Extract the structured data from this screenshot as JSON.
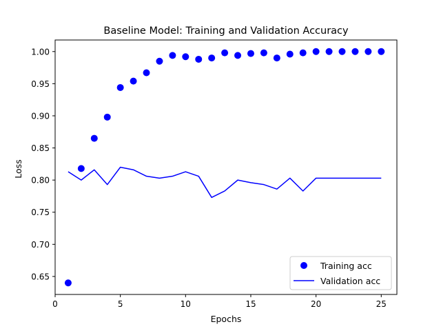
{
  "chart_data": {
    "type": "line",
    "title": "Baseline Model: Training and Validation Accuracy",
    "xlabel": "Epochs",
    "ylabel": "Loss",
    "xlim": [
      0,
      26.2
    ],
    "ylim": [
      0.622,
      1.018
    ],
    "xticks": [
      0,
      5,
      10,
      15,
      20,
      25
    ],
    "yticks": [
      0.65,
      0.7,
      0.75,
      0.8,
      0.85,
      0.9,
      0.95,
      1.0
    ],
    "ytick_labels": [
      "0.65",
      "0.70",
      "0.75",
      "0.80",
      "0.85",
      "0.90",
      "0.95",
      "1.00"
    ],
    "grid": false,
    "legend_position": "lower-right",
    "x": [
      1,
      2,
      3,
      4,
      5,
      6,
      7,
      8,
      9,
      10,
      11,
      12,
      13,
      14,
      15,
      16,
      17,
      18,
      19,
      20,
      21,
      22,
      23,
      24,
      25
    ],
    "series": [
      {
        "name": "Training acc",
        "style": "markers",
        "color": "#0000ff",
        "values": [
          0.64,
          0.818,
          0.865,
          0.898,
          0.944,
          0.954,
          0.967,
          0.985,
          0.994,
          0.992,
          0.988,
          0.99,
          0.998,
          0.994,
          0.997,
          0.998,
          0.99,
          0.996,
          0.998,
          1.0,
          1.0,
          1.0,
          1.0,
          1.0,
          1.0
        ]
      },
      {
        "name": "Validation acc",
        "style": "line",
        "color": "#0000ff",
        "values": [
          0.813,
          0.8,
          0.816,
          0.793,
          0.82,
          0.816,
          0.806,
          0.803,
          0.806,
          0.813,
          0.806,
          0.773,
          0.783,
          0.8,
          0.796,
          0.793,
          0.786,
          0.803,
          0.783,
          0.803,
          0.803,
          0.803,
          0.803,
          0.803,
          0.803
        ]
      }
    ]
  }
}
